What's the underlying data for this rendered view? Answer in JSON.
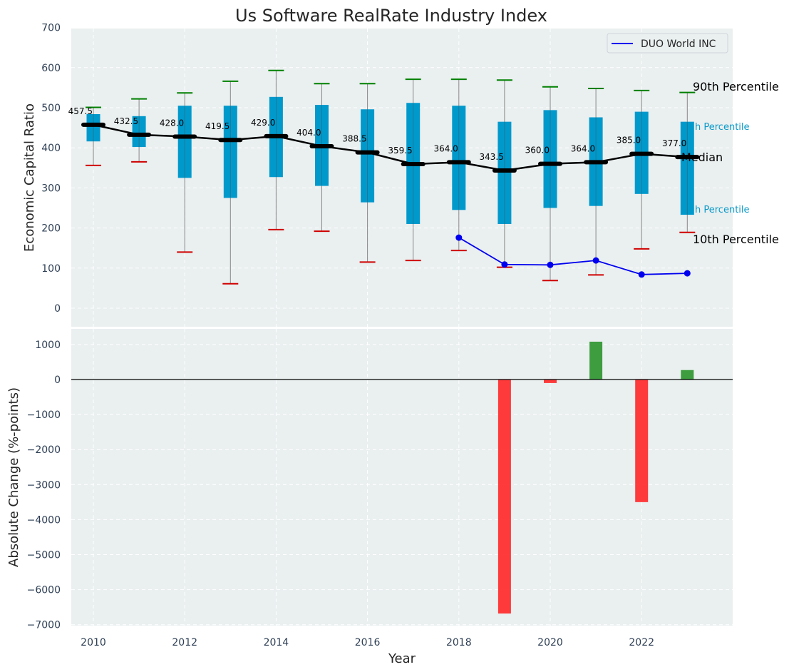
{
  "chart_data": [
    {
      "type": "box",
      "title": "Us Software RealRate Industry Index",
      "ylabel": "Economic Capital Ratio",
      "ylim": [
        -50,
        700
      ],
      "yticks": [
        0,
        100,
        200,
        300,
        400,
        500,
        600,
        700
      ],
      "grid": true,
      "legend_position": "top-right",
      "colors": {
        "box": "#0099cc",
        "median": "#000000",
        "whisker_top": "#008000",
        "whisker_bottom": "#d00000",
        "series": "#0000ee"
      },
      "years": [
        2010,
        2011,
        2012,
        2013,
        2014,
        2015,
        2016,
        2017,
        2018,
        2019,
        2020,
        2021,
        2022,
        2023
      ],
      "p10": [
        356,
        365,
        140,
        61,
        196,
        192,
        115,
        119,
        144,
        102,
        69,
        83,
        148,
        189
      ],
      "q1": [
        416,
        402,
        325,
        275,
        327,
        305,
        264,
        210,
        245,
        210,
        250,
        255,
        285,
        233
      ],
      "median": [
        457.5,
        432.5,
        428.0,
        419.5,
        429.0,
        404.0,
        388.5,
        359.5,
        364.0,
        343.5,
        360.0,
        364.0,
        385.0,
        377.0
      ],
      "median_labels": [
        "457.5",
        "432.5",
        "428.0",
        "419.5",
        "429.0",
        "404.0",
        "388.5",
        "359.5",
        "364.0",
        "343.5",
        "360.0",
        "364.0",
        "385.0",
        "377.0"
      ],
      "q3": [
        484,
        479,
        505,
        505,
        527,
        507,
        496,
        512,
        505,
        465,
        494,
        476,
        490,
        465
      ],
      "p90": [
        501,
        522,
        537,
        566,
        593,
        560,
        560,
        571,
        571,
        569,
        552,
        548,
        543,
        538
      ],
      "series": [
        {
          "name": "DUO World INC",
          "x": [
            2018,
            2019,
            2020,
            2021,
            2022,
            2023
          ],
          "values": [
            176,
            109,
            108,
            119,
            84,
            87
          ]
        }
      ],
      "annotations": {
        "p90": "90th Percentile",
        "q3": "h Percentile",
        "median": "Median",
        "q1": "h Percentile",
        "p10": "10th Percentile"
      }
    },
    {
      "type": "bar",
      "xlabel": "Year",
      "ylabel": "Absolute Change (%-points)",
      "ylim": [
        -7000,
        1500
      ],
      "yticks": [
        -7000,
        -6000,
        -5000,
        -4000,
        -3000,
        -2000,
        -1000,
        0,
        1000
      ],
      "xticks": [
        2010,
        2012,
        2014,
        2016,
        2018,
        2020,
        2022
      ],
      "grid": true,
      "colors": {
        "positive": "#2e9630",
        "negative": "#ff2a2a"
      },
      "x": [
        2019,
        2020,
        2021,
        2022,
        2023
      ],
      "values": [
        -6680,
        -100,
        1080,
        -3500,
        270
      ]
    }
  ]
}
